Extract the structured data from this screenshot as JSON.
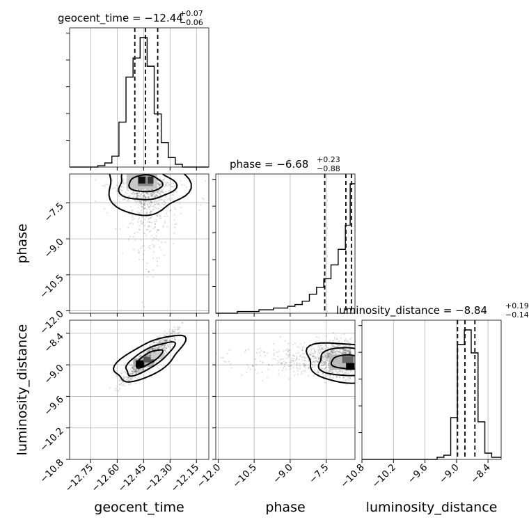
{
  "titles": {
    "geocent_time": {
      "prefix": "geocent_time = −12.44",
      "plus": "+0.07",
      "minus": "−0.06"
    },
    "phase": {
      "prefix": "phase = −6.68",
      "plus": "+0.23",
      "minus": "−0.88"
    },
    "luminosity_distance": {
      "prefix": "luminosity_distance = −8.84",
      "plus": "+0.19",
      "minus": "−0.14"
    }
  },
  "axis_labels": {
    "x_geocent_time": "geocent_time",
    "x_phase": "phase",
    "x_luminosity_distance": "luminosity_distance",
    "y_phase": "phase",
    "y_luminosity_distance": "luminosity_distance"
  },
  "chart_data": {
    "type": "corner",
    "parameters": [
      "geocent_time",
      "phase",
      "luminosity_distance"
    ],
    "ranges": {
      "geocent_time": [
        -12.87,
        -12.08
      ],
      "phase": [
        -12.1,
        -6.3
      ],
      "luminosity_distance": [
        -10.8,
        -8.15
      ]
    },
    "ticks": {
      "geocent_time": [
        -12.75,
        -12.6,
        -12.45,
        -12.3,
        -12.15
      ],
      "phase": [
        -12.0,
        -10.5,
        -9.0,
        -7.5
      ],
      "luminosity_distance": [
        -10.8,
        -10.2,
        -9.6,
        -9.0,
        -8.4
      ]
    },
    "tick_labels": {
      "geocent_time": [
        "−12.75",
        "−12.60",
        "−12.45",
        "−12.30",
        "−12.15"
      ],
      "phase": [
        "−12.0",
        "−10.5",
        "−9.0",
        "−7.5"
      ],
      "luminosity_distance": [
        "−10.8",
        "−10.2",
        "−9.6",
        "−9.0",
        "−8.4"
      ]
    },
    "y_tick_labels": {
      "phase": [
        "−7.5",
        "−9.0",
        "−10.5",
        "−12.0"
      ],
      "luminosity_distance": [
        "−8.4",
        "−9.0",
        "−9.6",
        "−10.2",
        "−10.8"
      ]
    },
    "quantiles": {
      "geocent_time": [
        -12.5,
        -12.44,
        -12.37
      ],
      "phase": [
        -7.56,
        -6.68,
        -6.45
      ],
      "luminosity_distance": [
        -8.98,
        -8.84,
        -8.65
      ]
    },
    "histograms": {
      "geocent_time": {
        "edges": [
          -12.87,
          -12.83,
          -12.79,
          -12.75,
          -12.71,
          -12.67,
          -12.63,
          -12.59,
          -12.55,
          -12.51,
          -12.47,
          -12.43,
          -12.39,
          -12.35,
          -12.31,
          -12.27,
          -12.23,
          -12.19,
          -12.15,
          -12.11,
          -12.08
        ],
        "counts": [
          0,
          0,
          0,
          0,
          1,
          3,
          8,
          33,
          66,
          80,
          95,
          74,
          39,
          18,
          7,
          2,
          0,
          0,
          0,
          0
        ]
      },
      "phase": {
        "edges": [
          -12.1,
          -11.8,
          -11.5,
          -11.2,
          -10.9,
          -10.6,
          -10.3,
          -10.0,
          -9.7,
          -9.4,
          -9.1,
          -8.8,
          -8.5,
          -8.2,
          -7.9,
          -7.6,
          -7.3,
          -7.0,
          -6.7,
          -6.5,
          -6.3
        ],
        "counts": [
          0,
          0,
          0,
          1,
          1,
          1,
          2,
          2,
          3,
          3,
          4,
          5,
          7,
          11,
          15,
          20,
          28,
          37,
          51,
          75
        ]
      },
      "luminosity_distance": {
        "edges": [
          -10.8,
          -10.67,
          -10.54,
          -10.41,
          -10.28,
          -10.15,
          -10.02,
          -9.89,
          -9.76,
          -9.63,
          -9.5,
          -9.37,
          -9.24,
          -9.11,
          -8.98,
          -8.85,
          -8.72,
          -8.59,
          -8.46,
          -8.33,
          -8.15
        ],
        "counts": [
          0,
          0,
          0,
          0,
          0,
          0,
          0,
          0,
          0,
          0,
          0,
          1,
          2,
          20,
          55,
          62,
          51,
          18,
          3,
          1
        ]
      }
    },
    "pair_centers": {
      "phase_vs_geocent_time": {
        "x": -12.44,
        "y": -6.7
      },
      "luminosity_distance_vs_geocent_time": {
        "x": -12.42,
        "y": -8.88
      },
      "luminosity_distance_vs_phase": {
        "x": -6.6,
        "y": -8.95
      }
    }
  }
}
